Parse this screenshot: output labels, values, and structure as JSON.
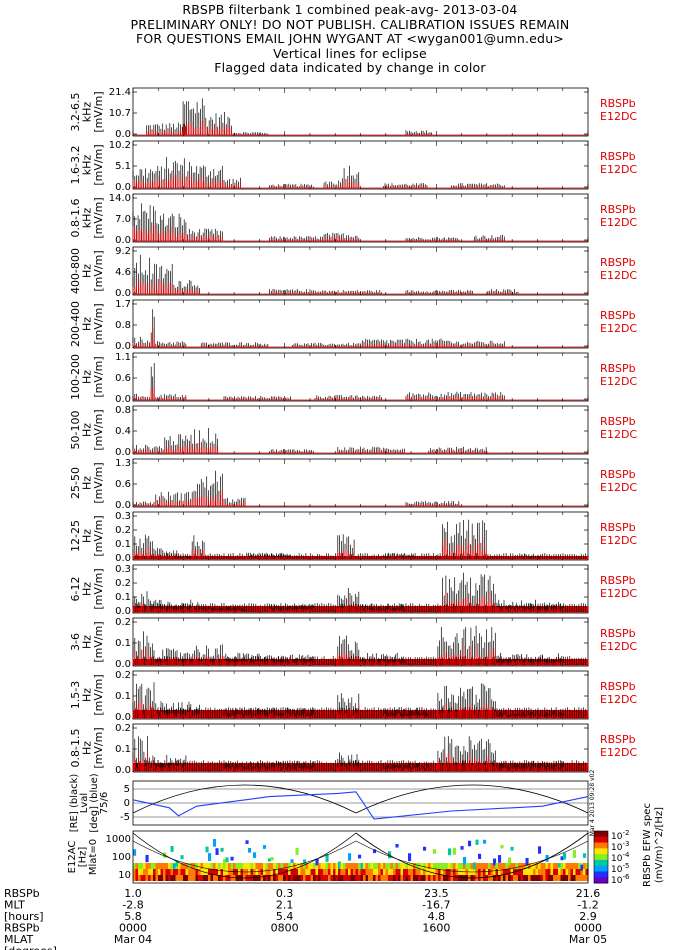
{
  "title_lines": [
    "RBSPB filterbank 1 combined peak-avg- 2013-03-04",
    "PRELIMINARY ONLY! DO NOT PUBLISH. CALIBRATION ISSUES REMAIN",
    "FOR QUESTIONS EMAIL JOHN WYGANT AT <wygan001@umn.edu>",
    "Vertical lines for eclipse",
    "Flagged data indicated by change in color"
  ],
  "colors": {
    "peak": "#000000",
    "avg": "#e00000",
    "orbit_line": "#1f3fff",
    "axis": "#000000"
  },
  "chart_data": {
    "type": "line",
    "x_axis": {
      "row_labels": [
        "RBSPb",
        "MLT",
        "[hours]",
        "RBSPb",
        "MLAT",
        "[degrees]"
      ],
      "ticks": [
        {
          "time": "0000 Mar 04",
          "rbspb": "1.0",
          "mlt": "-2.8",
          "hours": "5.8",
          "hhmm": "0000",
          "date": "Mar 04"
        },
        {
          "time": "0800",
          "rbspb": "0.3",
          "mlt": "2.1",
          "hours": "5.4",
          "hhmm": "0800",
          "date": ""
        },
        {
          "time": "1600",
          "rbspb": "23.5",
          "mlt": "-16.7",
          "hours": "4.8",
          "hhmm": "1600",
          "date": ""
        },
        {
          "time": "0000 Mar 05",
          "rbspb": "21.6",
          "mlt": "-1.2",
          "hours": "2.9",
          "hhmm": "0000",
          "date": "Mar 05"
        }
      ]
    },
    "panels": [
      {
        "band": "3.2-6.5",
        "unit_lines": [
          "3.2-6.5",
          "kHz",
          "[mV/m]"
        ],
        "yticks": [
          "21.4",
          "10.7",
          "0.0"
        ],
        "ymax": 21.4,
        "tag": [
          "RBSPb",
          "E12DC"
        ],
        "bursts": [
          [
            0.03,
            0.12,
            0.3
          ],
          [
            0.11,
            0.16,
            1.0
          ],
          [
            0.16,
            0.22,
            0.55
          ],
          [
            0.22,
            0.3,
            0.08
          ],
          [
            0.6,
            0.66,
            0.12
          ]
        ]
      },
      {
        "band": "1.6-3.2",
        "unit_lines": [
          "1.6-3.2",
          "kHz",
          "[mV/m]"
        ],
        "yticks": [
          "10.2",
          "5.1",
          "0.0"
        ],
        "ymax": 10.2,
        "tag": [
          "RBSPb",
          "E12DC"
        ],
        "bursts": [
          [
            0.0,
            0.07,
            0.55
          ],
          [
            0.07,
            0.14,
            0.75
          ],
          [
            0.14,
            0.2,
            0.6
          ],
          [
            0.2,
            0.24,
            0.25
          ],
          [
            0.3,
            0.4,
            0.1
          ],
          [
            0.42,
            0.46,
            0.2
          ],
          [
            0.46,
            0.5,
            0.6
          ],
          [
            0.55,
            0.65,
            0.12
          ],
          [
            0.7,
            0.82,
            0.12
          ]
        ]
      },
      {
        "band": "0.8-1.6",
        "unit_lines": [
          "0.8-1.6",
          "kHz",
          "[mV/m]"
        ],
        "yticks": [
          "14.0",
          "7.0",
          "0.0"
        ],
        "ymax": 14.0,
        "tag": [
          "RBSPb",
          "E12DC"
        ],
        "bursts": [
          [
            0.0,
            0.06,
            0.95
          ],
          [
            0.06,
            0.12,
            0.7
          ],
          [
            0.12,
            0.2,
            0.3
          ],
          [
            0.3,
            0.42,
            0.12
          ],
          [
            0.42,
            0.5,
            0.2
          ],
          [
            0.6,
            0.72,
            0.1
          ],
          [
            0.75,
            0.82,
            0.15
          ]
        ]
      },
      {
        "band": "400-800",
        "unit_lines": [
          "400-800",
          "Hz",
          "[mV/m]"
        ],
        "yticks": [
          "9.2",
          "4.6",
          "0.0"
        ],
        "ymax": 9.2,
        "tag": [
          "RBSPb",
          "E12DC"
        ],
        "bursts": [
          [
            0.0,
            0.04,
            0.95
          ],
          [
            0.04,
            0.09,
            0.75
          ],
          [
            0.09,
            0.15,
            0.4
          ],
          [
            0.3,
            0.42,
            0.12
          ],
          [
            0.42,
            0.55,
            0.1
          ],
          [
            0.6,
            0.75,
            0.1
          ],
          [
            0.78,
            0.85,
            0.12
          ]
        ]
      },
      {
        "band": "200-400",
        "unit_lines": [
          "200-400",
          "Hz",
          "[mV/m]"
        ],
        "yticks": [
          "1.7",
          "0.8",
          "0.0"
        ],
        "ymax": 1.7,
        "tag": [
          "RBSPb",
          "E12DC"
        ],
        "bursts": [
          [
            0.0,
            0.04,
            0.25
          ],
          [
            0.04,
            0.05,
            0.95
          ],
          [
            0.05,
            0.12,
            0.15
          ],
          [
            0.15,
            0.3,
            0.12
          ],
          [
            0.35,
            0.5,
            0.1
          ],
          [
            0.5,
            0.7,
            0.2
          ],
          [
            0.7,
            0.82,
            0.15
          ]
        ]
      },
      {
        "band": "100-200",
        "unit_lines": [
          "100-200",
          "Hz",
          "[mV/m]"
        ],
        "yticks": [
          "1.1",
          "0.6",
          "0.0"
        ],
        "ymax": 1.1,
        "tag": [
          "RBSPb",
          "E12DC"
        ],
        "bursts": [
          [
            0.0,
            0.04,
            0.15
          ],
          [
            0.04,
            0.05,
            0.95
          ],
          [
            0.05,
            0.12,
            0.15
          ],
          [
            0.2,
            0.35,
            0.1
          ],
          [
            0.4,
            0.55,
            0.12
          ],
          [
            0.6,
            0.82,
            0.2
          ]
        ]
      },
      {
        "band": "50-100",
        "unit_lines": [
          "50-100",
          "Hz",
          "[mV/m]"
        ],
        "yticks": [
          "0.8",
          "0.4",
          "0.0"
        ],
        "ymax": 0.8,
        "tag": [
          "RBSPb",
          "E12DC"
        ],
        "bursts": [
          [
            0.0,
            0.07,
            0.2
          ],
          [
            0.07,
            0.12,
            0.45
          ],
          [
            0.12,
            0.15,
            0.6
          ],
          [
            0.15,
            0.19,
            0.6
          ],
          [
            0.3,
            0.4,
            0.1
          ],
          [
            0.45,
            0.6,
            0.15
          ],
          [
            0.65,
            0.78,
            0.15
          ]
        ]
      },
      {
        "band": "25-50",
        "unit_lines": [
          "25-50",
          "Hz",
          "[mV/m]"
        ],
        "yticks": [
          "1.3",
          "0.6",
          "0.0"
        ],
        "ymax": 1.3,
        "tag": [
          "RBSPb",
          "E12DC"
        ],
        "bursts": [
          [
            0.0,
            0.05,
            0.12
          ],
          [
            0.05,
            0.09,
            0.35
          ],
          [
            0.09,
            0.13,
            0.35
          ],
          [
            0.13,
            0.17,
            0.75
          ],
          [
            0.17,
            0.2,
            0.9
          ],
          [
            0.2,
            0.25,
            0.2
          ],
          [
            0.6,
            0.72,
            0.12
          ]
        ]
      },
      {
        "band": "12-25",
        "unit_lines": [
          "12-25",
          "Hz",
          "[mV/m]"
        ],
        "yticks": [
          "0.3",
          "0.2",
          "0.1",
          "0.0"
        ],
        "ymax": 0.3,
        "tag": [
          "RBSPb",
          "E12DC"
        ],
        "bursts": [
          [
            0.0,
            0.05,
            0.6
          ],
          [
            0.05,
            0.1,
            0.3
          ],
          [
            0.1,
            0.13,
            0.1
          ],
          [
            0.13,
            0.16,
            0.6
          ],
          [
            0.25,
            0.35,
            0.15
          ],
          [
            0.45,
            0.49,
            0.6
          ],
          [
            0.55,
            0.62,
            0.15
          ],
          [
            0.68,
            0.78,
            0.95
          ],
          [
            0.85,
            0.9,
            0.12
          ]
        ]
      },
      {
        "band": "6-12",
        "unit_lines": [
          "6-12",
          "Hz",
          "[mV/m]"
        ],
        "yticks": [
          "0.3",
          "0.2",
          "0.1",
          "0.0"
        ],
        "ymax": 0.3,
        "tag": [
          "RBSPb",
          "E12DC"
        ],
        "bursts": [
          [
            0.0,
            0.05,
            0.5
          ],
          [
            0.05,
            0.15,
            0.3
          ],
          [
            0.15,
            0.25,
            0.15
          ],
          [
            0.3,
            0.4,
            0.2
          ],
          [
            0.45,
            0.5,
            0.6
          ],
          [
            0.5,
            0.6,
            0.2
          ],
          [
            0.68,
            0.8,
            0.95
          ],
          [
            0.8,
            0.95,
            0.3
          ]
        ]
      },
      {
        "band": "3-6",
        "unit_lines": [
          "3-6",
          "Hz",
          "[mV/m]"
        ],
        "yticks": [
          "0.2",
          "0.1",
          "0.0"
        ],
        "ymax": 0.2,
        "tag": [
          "RBSPb",
          "E12DC"
        ],
        "bursts": [
          [
            0.0,
            0.05,
            0.8
          ],
          [
            0.05,
            0.12,
            0.4
          ],
          [
            0.12,
            0.2,
            0.5
          ],
          [
            0.2,
            0.3,
            0.3
          ],
          [
            0.3,
            0.4,
            0.25
          ],
          [
            0.45,
            0.5,
            0.75
          ],
          [
            0.5,
            0.6,
            0.3
          ],
          [
            0.67,
            0.8,
            0.95
          ],
          [
            0.8,
            0.95,
            0.3
          ]
        ]
      },
      {
        "band": "1.5-3",
        "unit_lines": [
          "1.5-3",
          "Hz",
          "[mV/m]"
        ],
        "yticks": [
          "0.2",
          "0.1",
          "0.0"
        ],
        "ymax": 0.2,
        "tag": [
          "RBSPb",
          "E12DC"
        ],
        "bursts": [
          [
            0.0,
            0.05,
            0.9
          ],
          [
            0.05,
            0.15,
            0.4
          ],
          [
            0.2,
            0.4,
            0.25
          ],
          [
            0.45,
            0.5,
            0.6
          ],
          [
            0.55,
            0.65,
            0.25
          ],
          [
            0.67,
            0.8,
            0.85
          ],
          [
            0.8,
            0.95,
            0.2
          ]
        ]
      },
      {
        "band": "0.8-1.5",
        "unit_lines": [
          "0.8-1.5",
          "Hz",
          "[mV/m]"
        ],
        "yticks": [
          "0.2",
          "0.1",
          "0.0"
        ],
        "ymax": 0.2,
        "tag": [
          "RBSPb",
          "E12DC"
        ],
        "bursts": [
          [
            0.0,
            0.04,
            0.85
          ],
          [
            0.04,
            0.12,
            0.4
          ],
          [
            0.2,
            0.4,
            0.25
          ],
          [
            0.45,
            0.5,
            0.45
          ],
          [
            0.55,
            0.65,
            0.2
          ],
          [
            0.67,
            0.8,
            0.85
          ],
          [
            0.8,
            0.95,
            0.25
          ]
        ]
      }
    ],
    "orbit_panel": {
      "unit_lines": [
        "[RE] (black)",
        "Lval",
        "[deg] (blue)",
        "75/6"
      ],
      "yticks": [
        "5",
        "0",
        "-5"
      ],
      "mlat_curve": [
        [
          0.0,
          2
        ],
        [
          0.08,
          -3
        ],
        [
          0.1,
          -8
        ],
        [
          0.14,
          -2
        ],
        [
          0.3,
          4
        ],
        [
          0.45,
          6
        ],
        [
          0.49,
          7
        ],
        [
          0.53,
          -10
        ],
        [
          0.7,
          -5
        ],
        [
          0.9,
          -2
        ],
        [
          1.0,
          4
        ]
      ],
      "lval_arcs": [
        [
          0.0,
          0.49
        ],
        [
          0.49,
          1.0
        ]
      ],
      "vertical_text": "Mar 4 2013 09:28 v02"
    },
    "spectrogram": {
      "unit_lines": [
        "E12AC",
        "[Hz]",
        "Mlat=0"
      ],
      "yticks": [
        "1000",
        "100",
        "10"
      ],
      "colorbar_label": "RBSPb EFW spec",
      "colorbar_units": "(mV/m)^2/[Hz]",
      "colorbar_ticks": [
        "10^-2",
        "10^-3",
        "10^-4",
        "10^-5",
        "10^-6"
      ]
    }
  }
}
